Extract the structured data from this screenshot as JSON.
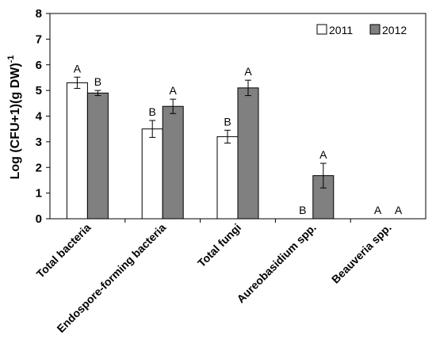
{
  "chart_data": {
    "type": "bar",
    "ylabel": "Log (CFU+1)(g DW)",
    "ylabel_superscript": "-1",
    "ylim": [
      0,
      8
    ],
    "yticks": [
      "0",
      "1",
      "2",
      "3",
      "4",
      "5",
      "6",
      "7",
      "8"
    ],
    "grid": false,
    "legend_position": "top-right",
    "categories": [
      "Total bacteria",
      "Endospore-forming bacteria",
      "Total fungi",
      "Aureobasidium spp.",
      "Beauveria spp."
    ],
    "series": [
      {
        "name": "2011",
        "color": "#ffffff",
        "values": [
          5.3,
          3.5,
          3.2,
          0,
          0
        ],
        "errors": [
          0.22,
          0.33,
          0.25,
          0,
          0
        ],
        "letters": [
          "A",
          "B",
          "B",
          "B",
          "A"
        ]
      },
      {
        "name": "2012",
        "color": "#808080",
        "values": [
          4.9,
          4.38,
          5.1,
          1.68,
          0
        ],
        "errors": [
          0.1,
          0.28,
          0.3,
          0.48,
          0
        ],
        "letters": [
          "B",
          "A",
          "A",
          "A",
          "A"
        ]
      }
    ]
  }
}
